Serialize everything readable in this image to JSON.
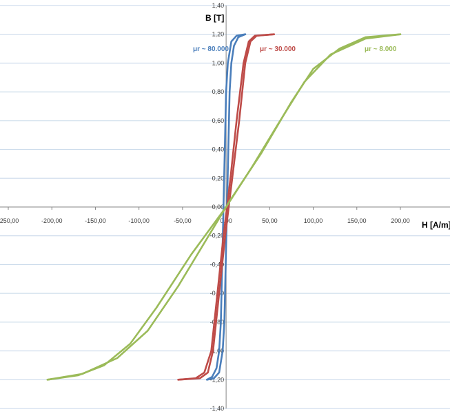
{
  "chart_data": {
    "type": "line",
    "xlabel": "H [A/m]",
    "ylabel": "B [T]",
    "xlim": [
      -250,
      200
    ],
    "ylim": [
      -1.4,
      1.4
    ],
    "x_ticks": [
      "-250,00",
      "-200,00",
      "-150,00",
      "-100,00",
      "-50,00",
      "0,00",
      "50,00",
      "100,00",
      "150,00",
      "200,00"
    ],
    "y_ticks": [
      "1,40",
      "1,20",
      "1,00",
      "0,80",
      "0,60",
      "0,40",
      "0,20",
      "0,00",
      "-0,20",
      "-0,40",
      "-0,60",
      "-0,80",
      "-1,00",
      "-1,20",
      "-1,40"
    ],
    "grid": "horizontal",
    "series": [
      {
        "name": "μr ~ 80.000",
        "color": "#4a7ebb",
        "ascending": [
          [
            -22,
            -1.2
          ],
          [
            -14,
            -1.19
          ],
          [
            -8,
            -1.15
          ],
          [
            -4,
            -1.0
          ],
          [
            -2,
            -0.8
          ],
          [
            -0.5,
            -0.4
          ],
          [
            1,
            0.0
          ],
          [
            2.5,
            0.4
          ],
          [
            4,
            0.8
          ],
          [
            6,
            1.0
          ],
          [
            9,
            1.12
          ],
          [
            14,
            1.18
          ],
          [
            22,
            1.2
          ]
        ],
        "descending": [
          [
            22,
            1.2
          ],
          [
            12,
            1.19
          ],
          [
            6,
            1.15
          ],
          [
            2,
            1.0
          ],
          [
            0,
            0.8
          ],
          [
            -1.5,
            0.4
          ],
          [
            -3,
            0.0
          ],
          [
            -4.5,
            -0.4
          ],
          [
            -6,
            -0.8
          ],
          [
            -8,
            -1.0
          ],
          [
            -11,
            -1.12
          ],
          [
            -16,
            -1.18
          ],
          [
            -22,
            -1.2
          ]
        ]
      },
      {
        "name": "μr ~ 30.000",
        "color": "#be4b48",
        "ascending": [
          [
            -55,
            -1.2
          ],
          [
            -35,
            -1.19
          ],
          [
            -25,
            -1.15
          ],
          [
            -17,
            -1.0
          ],
          [
            -10,
            -0.6
          ],
          [
            -3,
            -0.2
          ],
          [
            1,
            0.0
          ],
          [
            5,
            0.2
          ],
          [
            12,
            0.6
          ],
          [
            20,
            1.0
          ],
          [
            26,
            1.15
          ],
          [
            33,
            1.19
          ],
          [
            55,
            1.2
          ]
        ],
        "descending": [
          [
            55,
            1.2
          ],
          [
            35,
            1.19
          ],
          [
            28,
            1.15
          ],
          [
            22,
            1.0
          ],
          [
            15,
            0.6
          ],
          [
            7,
            0.2
          ],
          [
            3,
            0.0
          ],
          [
            -1,
            -0.2
          ],
          [
            -8,
            -0.6
          ],
          [
            -15,
            -1.0
          ],
          [
            -21,
            -1.15
          ],
          [
            -30,
            -1.19
          ],
          [
            -55,
            -1.2
          ]
        ]
      },
      {
        "name": "μr ~ 8.000",
        "color": "#9bbb59",
        "ascending": [
          [
            -205,
            -1.2
          ],
          [
            -170,
            -1.17
          ],
          [
            -140,
            -1.1
          ],
          [
            -110,
            -0.95
          ],
          [
            -80,
            -0.7
          ],
          [
            -40,
            -0.33
          ],
          [
            0,
            0.0
          ],
          [
            30,
            0.28
          ],
          [
            60,
            0.58
          ],
          [
            90,
            0.87
          ],
          [
            120,
            1.06
          ],
          [
            160,
            1.17
          ],
          [
            200,
            1.2
          ]
        ],
        "descending": [
          [
            200,
            1.2
          ],
          [
            160,
            1.18
          ],
          [
            130,
            1.1
          ],
          [
            100,
            0.96
          ],
          [
            75,
            0.73
          ],
          [
            40,
            0.37
          ],
          [
            5,
            0.05
          ],
          [
            -20,
            -0.2
          ],
          [
            -55,
            -0.55
          ],
          [
            -90,
            -0.86
          ],
          [
            -125,
            -1.05
          ],
          [
            -165,
            -1.16
          ],
          [
            -205,
            -1.2
          ]
        ]
      }
    ],
    "annotations": [
      {
        "text": "μr ~ 80.000",
        "color": "#4a7ebb"
      },
      {
        "text": "μr ~ 30.000",
        "color": "#be4b48"
      },
      {
        "text": "μr ~ 8.000",
        "color": "#9bbb59"
      }
    ]
  }
}
